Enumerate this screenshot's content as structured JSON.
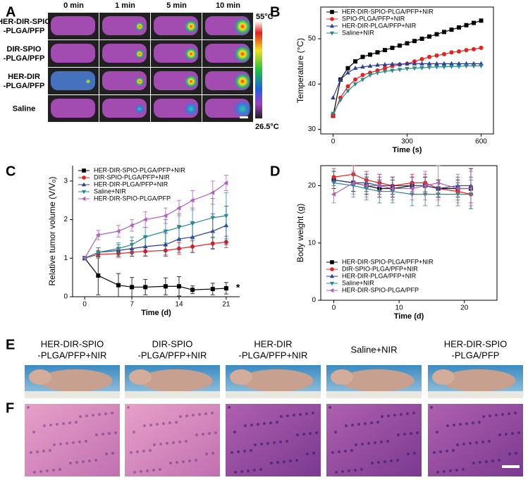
{
  "panels": [
    "A",
    "B",
    "C",
    "D",
    "E",
    "F"
  ],
  "thermal": {
    "columns": [
      "0 min",
      "1 min",
      "5 min",
      "10 min"
    ],
    "rows": [
      [
        "HER-DIR-SPIO",
        "-PLGA/PFP"
      ],
      [
        "DIR-SPIO",
        "-PLGA/PFP"
      ],
      [
        "HER-DIR",
        "-PLGA/PFP"
      ],
      [
        "Saline"
      ]
    ],
    "colorbar_max": "55°C",
    "colorbar_min": "26.5°C"
  },
  "mice": {
    "labels": [
      [
        "HER-DIR-SPIO",
        "-PLGA/PFP+NIR"
      ],
      [
        "DIR-SPIO",
        "-PLGA/PFP+NIR"
      ],
      [
        "HER-DIR",
        "-PLGA/PFP+NIR"
      ],
      [
        "Saline+NIR"
      ],
      [
        "HER-DIR-SPIO",
        "-PLGA/PFP"
      ]
    ]
  },
  "chart_data": [
    {
      "type": "line",
      "xlabel": "Time (s)",
      "ylabel": "Temperature (°C)",
      "x": [
        0,
        30,
        60,
        90,
        120,
        150,
        180,
        210,
        240,
        270,
        300,
        330,
        360,
        390,
        420,
        450,
        480,
        510,
        540,
        570,
        600
      ],
      "xlim": [
        -50,
        650
      ],
      "xticks": [
        0,
        300,
        600
      ],
      "ylim": [
        29,
        57
      ],
      "yticks": [
        30,
        40,
        50
      ],
      "legend": "upper left",
      "frame": true,
      "series": [
        {
          "name": "HER-DIR-SPIO-PLGA/PFP+NIR",
          "color": "#000000",
          "marker": "square",
          "values": [
            33,
            41,
            43.5,
            45,
            46,
            46.5,
            47,
            47.5,
            48,
            48.5,
            49,
            49.5,
            50,
            50.5,
            51,
            51.5,
            52,
            52.5,
            53,
            53.5,
            54
          ]
        },
        {
          "name": "SPIO-PLGA/PFP+NIR",
          "color": "#e8201e",
          "marker": "circle",
          "values": [
            33,
            37,
            39.5,
            41,
            42,
            42.5,
            43,
            43.5,
            44,
            44.3,
            44.5,
            45,
            45.5,
            46,
            46.3,
            46.6,
            47,
            47.2,
            47.5,
            47.7,
            48
          ]
        },
        {
          "name": "HER-DIR-PLGA/PFP+NIR",
          "color": "#2b3f96",
          "marker": "triangle-up",
          "values": [
            37,
            41,
            42.5,
            43.5,
            43.8,
            44,
            44.2,
            44.3,
            44.4,
            44.4,
            44.5,
            44.5,
            44.5,
            44.5,
            44.5,
            44.5,
            44.5,
            44.5,
            44.5,
            44.5,
            44.5
          ]
        },
        {
          "name": "Saline+NIR",
          "color": "#2a8a8a",
          "marker": "triangle-down",
          "values": [
            33.5,
            36.5,
            38.5,
            40,
            41,
            42,
            42.5,
            42.8,
            43,
            43.2,
            43.4,
            43.5,
            43.6,
            43.7,
            43.8,
            43.8,
            43.9,
            43.9,
            44,
            44,
            44
          ]
        }
      ]
    },
    {
      "type": "line",
      "xlabel": "Time (d)",
      "ylabel": "Relative tumor volume (V/V₀)",
      "annotation": "*",
      "x": [
        0,
        2,
        5,
        7,
        9,
        12,
        14,
        16,
        19,
        21
      ],
      "xlim": [
        -1.8,
        23
      ],
      "xticks": [
        0,
        7,
        14,
        21
      ],
      "ylim": [
        0,
        3.4
      ],
      "yticks": [
        0,
        1,
        2,
        3
      ],
      "legend": "upper left",
      "frame": false,
      "series": [
        {
          "name": "HER-DIR-SPIO-PLGA/PFP+NIR",
          "color": "#000000",
          "marker": "square",
          "values": [
            1,
            0.55,
            0.3,
            0.25,
            0.25,
            0.27,
            0.27,
            0.18,
            0.2,
            0.22
          ],
          "errors": [
            0,
            0.5,
            0.3,
            0.25,
            0.2,
            0.22,
            0.25,
            0.1,
            0.15,
            0.15
          ]
        },
        {
          "name": "DIR-SPIO-PLGA/PFP+NIR",
          "color": "#e8201e",
          "marker": "circle",
          "values": [
            1,
            1.1,
            1.12,
            1.15,
            1.18,
            1.2,
            1.25,
            1.3,
            1.38,
            1.42
          ],
          "errors": [
            0,
            0.1,
            0.1,
            0.1,
            0.12,
            0.12,
            0.15,
            0.15,
            0.15,
            0.15
          ]
        },
        {
          "name": "HER-DIR-PLGA/PFP+NIR",
          "color": "#2b3f96",
          "marker": "triangle-up",
          "values": [
            1,
            1.15,
            1.2,
            1.25,
            1.3,
            1.35,
            1.5,
            1.55,
            1.7,
            1.85
          ],
          "errors": [
            0,
            0.12,
            0.15,
            0.2,
            0.25,
            0.3,
            0.35,
            0.4,
            0.45,
            0.5
          ]
        },
        {
          "name": "Saline+NIR",
          "color": "#2a8a8a",
          "marker": "triangle-down",
          "values": [
            1,
            1.15,
            1.25,
            1.35,
            1.55,
            1.7,
            1.8,
            1.9,
            2.05,
            2.1
          ],
          "errors": [
            0,
            0.12,
            0.15,
            0.2,
            0.25,
            0.3,
            0.35,
            0.4,
            0.5,
            0.6
          ]
        },
        {
          "name": "HER-DIR-SPIO-PLGA/PFP",
          "color": "#b05fb8",
          "marker": "triangle-left",
          "values": [
            1,
            1.6,
            1.7,
            1.85,
            2.0,
            2.1,
            2.3,
            2.5,
            2.7,
            2.95
          ],
          "errors": [
            0,
            0.12,
            0.15,
            0.15,
            0.2,
            0.2,
            0.2,
            0.25,
            0.3,
            0.2
          ]
        }
      ]
    },
    {
      "type": "line",
      "xlabel": "Time (d)",
      "ylabel": "Body weight (g)",
      "x": [
        0,
        3,
        5,
        7,
        9,
        12,
        14,
        16,
        19,
        21
      ],
      "xlim": [
        -2,
        25
      ],
      "xticks": [
        0,
        10,
        20
      ],
      "ylim": [
        0,
        23.5
      ],
      "yticks": [
        0,
        10,
        20
      ],
      "legend": "lower left",
      "frame": true,
      "series": [
        {
          "name": "HER-DIR-SPIO-PLGA/PFP+NIR",
          "color": "#000000",
          "marker": "square",
          "values": [
            21,
            20.5,
            20,
            19.5,
            19.5,
            20,
            20,
            19.5,
            19.5,
            19.5
          ],
          "errors": [
            1.5,
            1.5,
            1.5,
            1.5,
            1.5,
            1.5,
            1.5,
            1.5,
            1.5,
            3.5
          ]
        },
        {
          "name": "DIR-SPIO-PLGA/PFP+NIR",
          "color": "#e8201e",
          "marker": "circle",
          "values": [
            21.5,
            22,
            21,
            20.5,
            20,
            20.5,
            20.5,
            19.5,
            19,
            18.5
          ],
          "errors": [
            1.5,
            1.5,
            1.5,
            1.5,
            1.5,
            1.5,
            1.5,
            1.5,
            1.5,
            1.5
          ]
        },
        {
          "name": "HER-DIR-PLGA/PFP+NIR",
          "color": "#2b3f96",
          "marker": "triangle-up",
          "values": [
            21,
            20.5,
            20.5,
            20,
            20,
            20,
            20,
            19.5,
            20,
            20
          ],
          "errors": [
            1.5,
            1.5,
            1.5,
            1.5,
            1.5,
            1.5,
            1.5,
            1.5,
            1.5,
            1.5
          ]
        },
        {
          "name": "Saline+NIR",
          "color": "#2a8a8a",
          "marker": "triangle-down",
          "values": [
            20.5,
            20,
            19.5,
            19,
            19,
            18.5,
            18.5,
            18.5,
            18.5,
            18.5
          ],
          "errors": [
            2,
            2,
            2,
            2,
            2,
            2,
            2,
            2,
            2,
            2.5
          ]
        },
        {
          "name": "HER-DIR-SPIO-PLGA/PFP",
          "color": "#b05fb8",
          "marker": "triangle-left",
          "values": [
            18.5,
            20.5,
            20,
            20,
            19.5,
            19.5,
            20,
            20.5,
            19.5,
            19.5
          ],
          "errors": [
            1.5,
            2,
            2,
            2,
            2,
            2,
            2.5,
            3,
            2.5,
            3
          ]
        }
      ]
    }
  ]
}
